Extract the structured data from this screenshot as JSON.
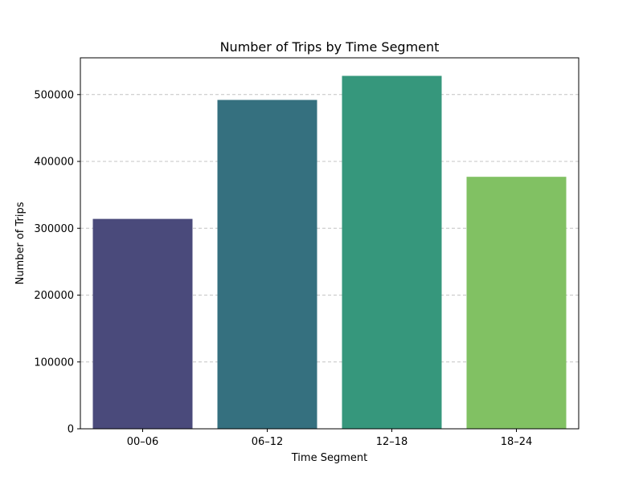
{
  "chart_data": {
    "type": "bar",
    "title": "Number of Trips by Time Segment",
    "xlabel": "Time Segment",
    "ylabel": "Number of Trips",
    "categories": [
      "00–06",
      "06–12",
      "12–18",
      "18–24"
    ],
    "values": [
      314000,
      492000,
      528000,
      377000
    ],
    "colors": [
      "#4a4a7b",
      "#35707f",
      "#36977c",
      "#81c163"
    ],
    "ylim": [
      0,
      555000
    ],
    "yticks": [
      0,
      100000,
      200000,
      300000,
      400000,
      500000
    ],
    "ytick_labels": [
      "0",
      "100000",
      "200000",
      "300000",
      "400000",
      "500000"
    ],
    "grid": "y-dashed",
    "grid_color": "#c4c4c4"
  }
}
